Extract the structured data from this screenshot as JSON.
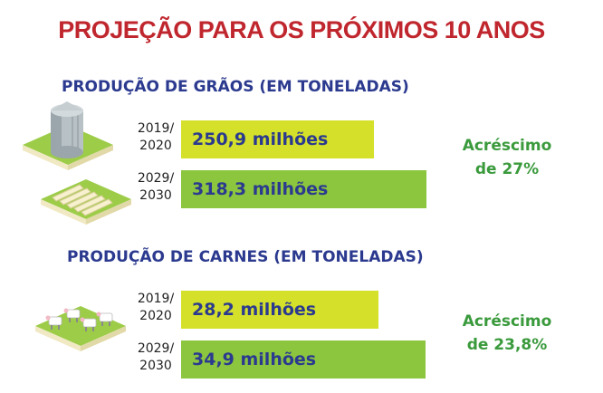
{
  "title": "PROJEÇÃO PARA OS PRÓXIMOS 10 ANOS",
  "colors": {
    "title": "#c0262d",
    "heading": "#2b3a8f",
    "bar_2019": "#d4e02a",
    "bar_2029": "#8cc63f",
    "increase": "#3a9a3c"
  },
  "icons": [
    "grain-silo-icon",
    "greenhouse-icon",
    "cattle-farm-icon"
  ],
  "chart_data": [
    {
      "type": "bar",
      "title": "PRODUÇÃO DE GRÃOS (EM TONELADAS)",
      "categories": [
        "2019/\n2020",
        "2029/\n2030"
      ],
      "category_lines": [
        [
          "2019/",
          "2020"
        ],
        [
          "2029/",
          "2030"
        ]
      ],
      "values": [
        250.9,
        318.3
      ],
      "value_labels": [
        "250,9 milhões",
        "318,3 milhões"
      ],
      "annotation_lines": [
        "Acréscimo",
        "de 27%"
      ],
      "xlim": [
        0,
        400
      ]
    },
    {
      "type": "bar",
      "title": "PRODUÇÃO DE CARNES (EM TONELADAS)",
      "categories": [
        "2019/\n2020",
        "2029/\n2030"
      ],
      "category_lines": [
        [
          "2019/",
          "2020"
        ],
        [
          "2029/",
          "2030"
        ]
      ],
      "values": [
        28.2,
        34.9
      ],
      "value_labels": [
        "28,2 milhões",
        "34,9 milhões"
      ],
      "annotation_lines": [
        "Acréscimo",
        "de 23,8%"
      ],
      "xlim": [
        0,
        44
      ]
    }
  ]
}
